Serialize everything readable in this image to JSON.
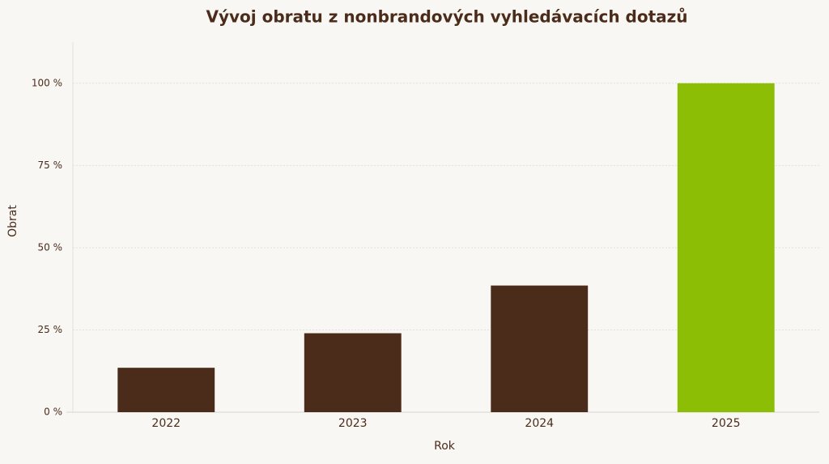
{
  "chart_data": {
    "type": "bar",
    "title": "Vývoj obratu z nonbrandových vyhledávacích dotazů",
    "x_label": "Rok",
    "y_label": "Obrat",
    "categories": [
      "2022",
      "2023",
      "2024",
      "2025"
    ],
    "values": [
      13.5,
      24,
      38.5,
      100
    ],
    "colors": [
      "#4b2c1a",
      "#4b2c1a",
      "#4b2c1a",
      "#8bbe05"
    ],
    "ylim": [
      0,
      112.5
    ],
    "yticks": [
      {
        "value": 0,
        "label": "0 %"
      },
      {
        "value": 25,
        "label": "25 %"
      },
      {
        "value": 50,
        "label": "50 %"
      },
      {
        "value": 75,
        "label": "75 %"
      },
      {
        "value": 100,
        "label": "100 %"
      }
    ],
    "grid": true
  }
}
